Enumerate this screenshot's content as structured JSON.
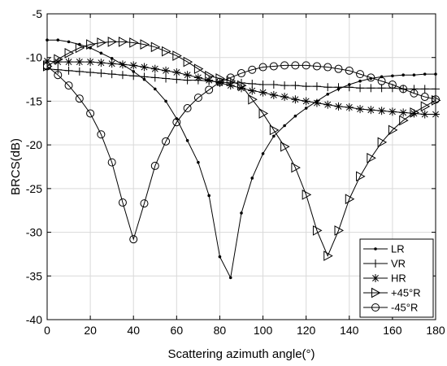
{
  "chart_data": {
    "type": "line",
    "title": "",
    "xlabel": "Scattering azimuth angle(°)",
    "ylabel": "BRCS(dB)",
    "xlim": [
      0,
      180
    ],
    "ylim": [
      -40,
      -5
    ],
    "xticks": [
      0,
      20,
      40,
      60,
      80,
      100,
      120,
      140,
      160,
      180
    ],
    "yticks": [
      -40,
      -35,
      -30,
      -25,
      -20,
      -15,
      -10,
      -5
    ],
    "xtick_labels": [
      "0",
      "20",
      "40",
      "60",
      "80",
      "100",
      "120",
      "140",
      "160",
      "180"
    ],
    "ytick_labels": [
      "-40",
      "-35",
      "-30",
      "-25",
      "-20",
      "-15",
      "-10",
      "-5"
    ],
    "grid": true,
    "legend_position": "bottom-right",
    "line_color": "#000000",
    "series": [
      {
        "name": "LR",
        "marker": "dot",
        "x": [
          0,
          5,
          10,
          15,
          20,
          25,
          30,
          35,
          40,
          45,
          50,
          55,
          60,
          65,
          70,
          75,
          80,
          85,
          90,
          95,
          100,
          105,
          110,
          115,
          120,
          125,
          130,
          135,
          140,
          145,
          150,
          155,
          160,
          165,
          170,
          175,
          180
        ],
        "y": [
          -8.0,
          -8.0,
          -8.2,
          -8.5,
          -8.9,
          -9.5,
          -10.1,
          -10.8,
          -11.6,
          -12.5,
          -13.6,
          -15.0,
          -17.0,
          -19.5,
          -22.0,
          -25.8,
          -32.8,
          -35.2,
          -27.8,
          -23.8,
          -21.0,
          -19.0,
          -17.8,
          -16.7,
          -15.8,
          -15.0,
          -14.2,
          -13.6,
          -13.1,
          -12.7,
          -12.4,
          -12.2,
          -12.1,
          -12.0,
          -12.0,
          -11.9,
          -11.9
        ]
      },
      {
        "name": "VR",
        "marker": "plus",
        "x": [
          0,
          5,
          10,
          15,
          20,
          25,
          30,
          35,
          40,
          45,
          50,
          55,
          60,
          65,
          70,
          75,
          80,
          85,
          90,
          95,
          100,
          105,
          110,
          115,
          120,
          125,
          130,
          135,
          140,
          145,
          150,
          155,
          160,
          165,
          170,
          175,
          180
        ],
        "y": [
          -11.3,
          -11.4,
          -11.5,
          -11.6,
          -11.7,
          -11.8,
          -11.9,
          -12.0,
          -12.1,
          -12.2,
          -12.3,
          -12.4,
          -12.5,
          -12.6,
          -12.6,
          -12.7,
          -12.8,
          -12.9,
          -12.9,
          -13.0,
          -13.1,
          -13.1,
          -13.2,
          -13.2,
          -13.3,
          -13.3,
          -13.4,
          -13.4,
          -13.4,
          -13.5,
          -13.5,
          -13.5,
          -13.5,
          -13.6,
          -13.6,
          -13.6,
          -13.6
        ]
      },
      {
        "name": "HR",
        "marker": "asterisk",
        "x": [
          0,
          5,
          10,
          15,
          20,
          25,
          30,
          35,
          40,
          45,
          50,
          55,
          60,
          65,
          70,
          75,
          80,
          85,
          90,
          95,
          100,
          105,
          110,
          115,
          120,
          125,
          130,
          135,
          140,
          145,
          150,
          155,
          160,
          165,
          170,
          175,
          180
        ],
        "y": [
          -10.4,
          -10.5,
          -10.5,
          -10.5,
          -10.5,
          -10.6,
          -10.7,
          -10.8,
          -10.9,
          -11.1,
          -11.3,
          -11.5,
          -11.7,
          -12.0,
          -12.3,
          -12.6,
          -12.9,
          -13.2,
          -13.5,
          -13.8,
          -14.0,
          -14.3,
          -14.5,
          -14.8,
          -15.0,
          -15.2,
          -15.4,
          -15.6,
          -15.7,
          -15.9,
          -16.0,
          -16.1,
          -16.2,
          -16.3,
          -16.4,
          -16.5,
          -16.5
        ]
      },
      {
        "name": "+45°R",
        "marker": "triangle-right",
        "x": [
          0,
          5,
          10,
          15,
          20,
          25,
          30,
          35,
          40,
          45,
          50,
          55,
          60,
          65,
          70,
          75,
          80,
          85,
          90,
          95,
          100,
          105,
          110,
          115,
          120,
          125,
          130,
          135,
          140,
          145,
          150,
          155,
          160,
          165,
          170,
          175,
          180
        ],
        "y": [
          -11.0,
          -10.2,
          -9.5,
          -8.9,
          -8.5,
          -8.3,
          -8.2,
          -8.2,
          -8.3,
          -8.5,
          -8.8,
          -9.3,
          -9.8,
          -10.5,
          -11.3,
          -12.1,
          -12.4,
          -12.7,
          -13.2,
          -14.8,
          -16.4,
          -18.3,
          -20.2,
          -22.6,
          -25.7,
          -29.8,
          -32.7,
          -29.8,
          -26.2,
          -23.6,
          -21.5,
          -19.7,
          -18.3,
          -17.2,
          -16.3,
          -15.6,
          -14.9
        ]
      },
      {
        "name": "-45°R",
        "marker": "circle",
        "x": [
          0,
          5,
          10,
          15,
          20,
          25,
          30,
          35,
          40,
          45,
          50,
          55,
          60,
          65,
          70,
          75,
          80,
          85,
          90,
          95,
          100,
          105,
          110,
          115,
          120,
          125,
          130,
          135,
          140,
          145,
          150,
          155,
          160,
          165,
          170,
          175,
          180
        ],
        "y": [
          -11.0,
          -12.0,
          -13.2,
          -14.7,
          -16.4,
          -18.8,
          -22.0,
          -26.6,
          -30.8,
          -26.7,
          -22.4,
          -19.6,
          -17.4,
          -15.8,
          -14.6,
          -13.7,
          -12.8,
          -12.3,
          -11.8,
          -11.4,
          -11.1,
          -11.0,
          -10.9,
          -10.9,
          -10.9,
          -11.0,
          -11.1,
          -11.3,
          -11.5,
          -11.9,
          -12.3,
          -12.7,
          -13.1,
          -13.6,
          -14.1,
          -14.5,
          -14.8
        ]
      }
    ]
  }
}
